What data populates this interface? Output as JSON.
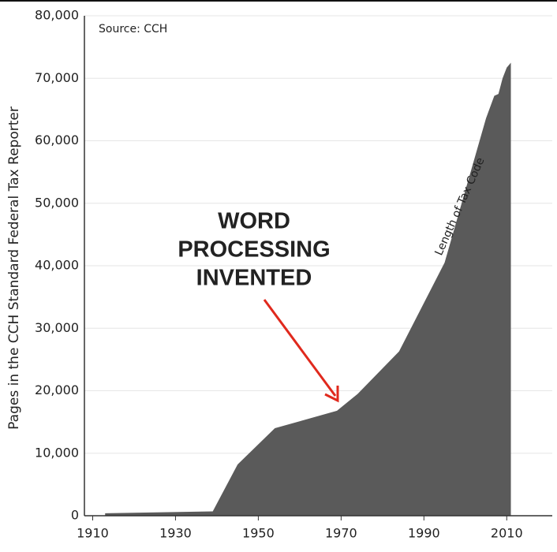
{
  "chart_data": {
    "type": "area",
    "y_label": "Pages in the CCH Standard Federal Tax Reporter",
    "source": "Source: CCH",
    "annotation": [
      "WORD",
      "PROCESSING",
      "INVENTED"
    ],
    "annotation_color": "#e0291d",
    "x": [
      1913,
      1939,
      1945,
      1954,
      1969,
      1974,
      1984,
      1995,
      2005,
      2007,
      2008,
      2009,
      2010,
      2011
    ],
    "series": [
      {
        "name": "Length of Tax Code",
        "color": "#5a5a5a",
        "values": [
          400,
          700,
          8200,
          14000,
          16800,
          19500,
          26300,
          40500,
          63600,
          67200,
          67500,
          70000,
          71700,
          72500
        ]
      }
    ],
    "xlim": [
      1908,
      2021
    ],
    "xticks": [
      1910,
      1930,
      1950,
      1970,
      1990,
      2010
    ],
    "ylim": [
      0,
      80000
    ],
    "yticks": [
      0,
      {
        "value": 10000,
        "label": "10,000"
      },
      {
        "value": 20000,
        "label": "20,000"
      },
      {
        "value": 30000,
        "label": "30,000"
      },
      {
        "value": 40000,
        "label": "40,000"
      },
      {
        "value": 50000,
        "label": "50,000"
      },
      {
        "value": 60000,
        "label": "60,000"
      },
      {
        "value": 70000,
        "label": "70,000"
      },
      {
        "value": 80000,
        "label": "80,000"
      }
    ],
    "grid": true
  }
}
